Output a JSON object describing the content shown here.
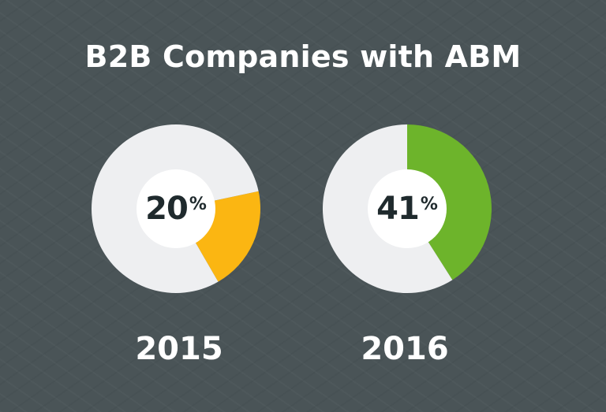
{
  "title": "B2B Companies with ABM",
  "chart_data": [
    {
      "type": "pie",
      "label": "2015",
      "value_text": "20",
      "unit": "%",
      "slices": [
        {
          "value": 20,
          "color": "#fbb612"
        },
        {
          "value": 80,
          "color": "#eeeff1"
        }
      ]
    },
    {
      "type": "pie",
      "label": "2016",
      "value_text": "41",
      "unit": "%",
      "slices": [
        {
          "value": 41,
          "color": "#6db42b"
        },
        {
          "value": 59,
          "color": "#eeeff1"
        }
      ]
    }
  ],
  "colors": {
    "background": "#4a5457",
    "donut_track": "#eeeff1",
    "center_fill": "#ffffff",
    "center_text": "#1f2a2d",
    "text_light": "#ffffff"
  }
}
